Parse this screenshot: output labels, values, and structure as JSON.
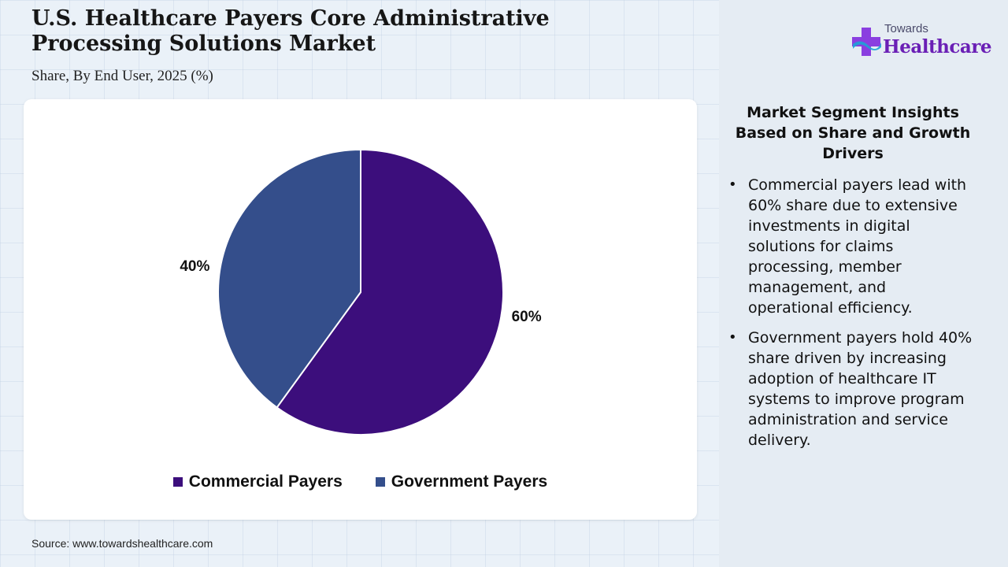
{
  "header": {
    "title": "U.S. Healthcare Payers Core Administrative Processing Solutions Market",
    "subtitle": "Share, By End User, 2025 (%)"
  },
  "chart_data": {
    "type": "pie",
    "title": "U.S. Healthcare Payers Core Administrative Processing Solutions Market",
    "subtitle": "Share, By End User, 2025 (%)",
    "categories": [
      "Commercial Payers",
      "Government Payers"
    ],
    "values": [
      60,
      40
    ],
    "labels": [
      "60%",
      "40%"
    ],
    "colors": [
      "#3c0e7c",
      "#344e8b"
    ],
    "legend_position": "bottom-center",
    "start_angle": "12 o'clock",
    "direction": "clockwise"
  },
  "legend": {
    "items": [
      {
        "label": "Commercial Payers",
        "color": "#3c0e7c"
      },
      {
        "label": "Government Payers",
        "color": "#344e8b"
      }
    ]
  },
  "source": "Source: www.towardshealthcare.com",
  "logo": {
    "small_text": "Towards",
    "brand_text": "Healthcare",
    "colors": [
      "#8a3fe0",
      "#1da4d6",
      "#6a1fb5"
    ]
  },
  "insights": {
    "heading": "Market Segment Insights Based on Share and Growth Drivers",
    "bullets": [
      "Commercial payers lead with 60% share due to extensive investments in digital solutions for claims processing, member management, and operational efficiency.",
      "Government payers hold 40% share driven by increasing adoption of healthcare IT systems to improve program administration and service delivery."
    ]
  }
}
